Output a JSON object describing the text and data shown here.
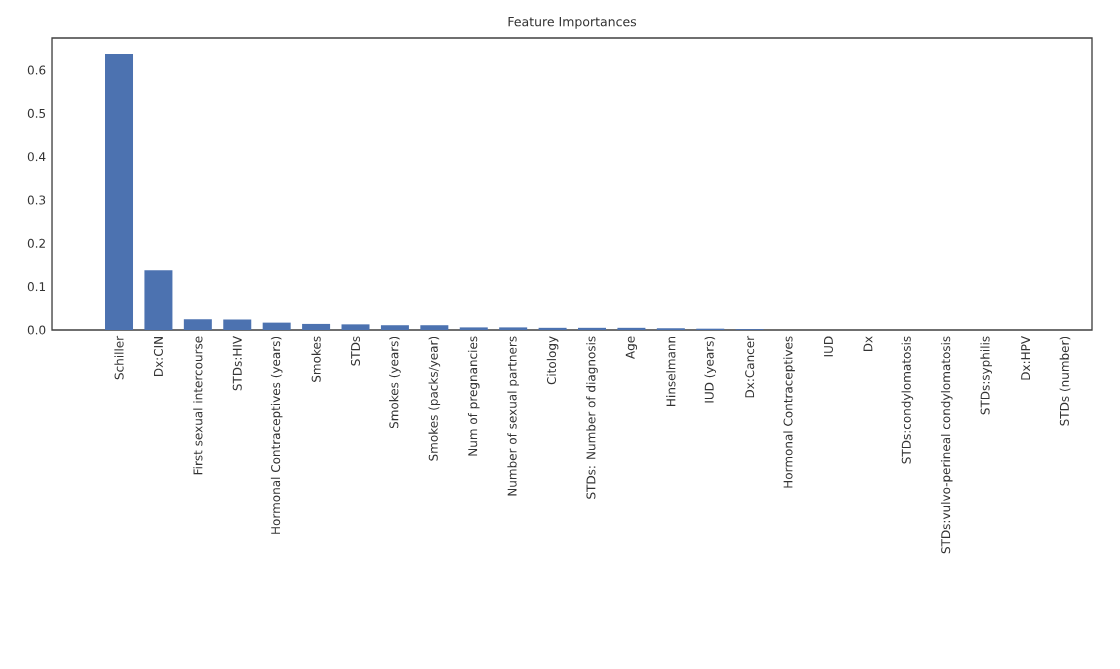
{
  "chart_data": {
    "type": "bar",
    "title": "Feature Importances",
    "categories": [
      "Schiller",
      "Dx:CIN",
      "First sexual intercourse",
      "STDs:HIV",
      "Hormonal Contraceptives (years)",
      "Smokes",
      "STDs",
      "Smokes (years)",
      "Smokes (packs/year)",
      "Num of pregnancies",
      "Number of sexual partners",
      "Citology",
      "STDs: Number of diagnosis",
      "Age",
      "Hinselmann",
      "IUD (years)",
      "Dx:Cancer",
      "Hormonal Contraceptives",
      "IUD",
      "Dx",
      "STDs:condylomatosis",
      "STDs:vulvo-perineal condylomatosis",
      "STDs:syphilis",
      "Dx:HPV",
      "STDs (number)"
    ],
    "values": [
      0.637,
      0.138,
      0.025,
      0.024,
      0.017,
      0.014,
      0.013,
      0.011,
      0.011,
      0.006,
      0.006,
      0.005,
      0.005,
      0.005,
      0.004,
      0.003,
      0.002,
      0,
      0,
      0,
      0,
      0,
      0,
      0,
      0
    ],
    "color": "#4c72b0",
    "ylim": [
      0,
      0.674
    ],
    "yticks": [
      {
        "value": 0,
        "label": "0.0"
      },
      0.1,
      0.2,
      0.3,
      0.4,
      0.5,
      0.6
    ],
    "grid": false
  }
}
